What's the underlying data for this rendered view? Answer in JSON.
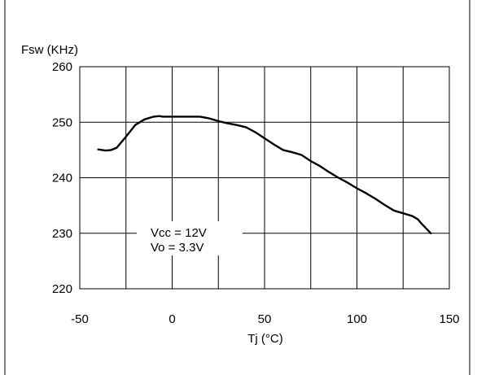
{
  "chart_data": {
    "type": "line",
    "ylabel": "Fsw (KHz)",
    "xlabel": "Tj (°C)",
    "xlim": [
      -50,
      150
    ],
    "ylim": [
      220,
      260
    ],
    "x_ticks": [
      -50,
      0,
      50,
      100,
      150
    ],
    "y_ticks": [
      220,
      230,
      240,
      250,
      260
    ],
    "grid": true,
    "annotation": [
      "Vcc = 12V",
      "Vo = 3.3V"
    ],
    "series": [
      {
        "x": [
          -40,
          -36,
          -33,
          -30,
          -25,
          -20,
          -15,
          -10,
          -7,
          -5,
          0,
          5,
          10,
          15,
          20,
          25,
          30,
          35,
          40,
          45,
          50,
          55,
          60,
          65,
          70,
          75,
          80,
          85,
          90,
          95,
          100,
          105,
          110,
          115,
          120,
          125,
          130,
          133,
          135,
          140
        ],
        "values": [
          245.1,
          244.9,
          245.0,
          245.4,
          247.4,
          249.5,
          250.5,
          251.0,
          251.1,
          251.0,
          251.0,
          251.0,
          251.0,
          251.0,
          250.7,
          250.2,
          249.8,
          249.5,
          249.1,
          248.2,
          247.1,
          246.0,
          245.0,
          244.6,
          244.1,
          243.0,
          242.1,
          241.0,
          240.0,
          239.1,
          238.1,
          237.2,
          236.2,
          235.1,
          234.1,
          233.6,
          233.1,
          232.5,
          231.7,
          230.0
        ]
      }
    ]
  }
}
